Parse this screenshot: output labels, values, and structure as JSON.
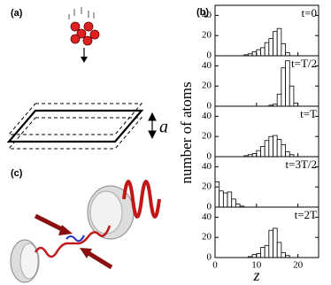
{
  "figure": {
    "panel_labels": [
      "(a)",
      "(b)",
      "(c)"
    ],
    "gap_label": "a",
    "xlabel": "z",
    "ylabel": "number of atoms"
  },
  "chart_data": [
    {
      "type": "histogram",
      "annotation": "t=0",
      "bins": [
        7,
        8,
        9,
        10,
        11,
        12,
        13,
        14,
        15,
        16,
        17,
        18
      ],
      "values": [
        1,
        2,
        4,
        6,
        8,
        13,
        17,
        24,
        27,
        12,
        3
      ],
      "xlim": [
        0,
        25
      ],
      "ylim": [
        0,
        50
      ],
      "yticks": [
        0,
        20,
        40
      ],
      "xticks": [
        0,
        10,
        20
      ],
      "color": "#ffffff"
    },
    {
      "type": "histogram",
      "annotation": "t=T/2",
      "bins": [
        13,
        14,
        15,
        16,
        17,
        18,
        19,
        20
      ],
      "values": [
        1,
        2,
        12,
        38,
        45,
        20,
        3
      ],
      "xlim": [
        0,
        25
      ],
      "ylim": [
        0,
        50
      ],
      "yticks": [
        0,
        20,
        40
      ],
      "xticks": [
        0,
        10,
        20
      ],
      "color": "#ffffff"
    },
    {
      "type": "histogram",
      "annotation": "t=T",
      "bins": [
        7,
        8,
        9,
        10,
        11,
        12,
        13,
        14,
        15,
        16,
        17,
        18,
        19
      ],
      "values": [
        1,
        2,
        3,
        6,
        10,
        16,
        20,
        21,
        17,
        12,
        5,
        2
      ],
      "xlim": [
        0,
        25
      ],
      "ylim": [
        0,
        50
      ],
      "yticks": [
        0,
        20,
        40
      ],
      "xticks": [
        0,
        10,
        20
      ],
      "color": "#ffffff"
    },
    {
      "type": "histogram",
      "annotation": "t=3T/2",
      "bins": [
        0,
        1,
        2,
        3,
        4,
        5,
        6,
        7
      ],
      "values": [
        25,
        16,
        14,
        15,
        8,
        3,
        1
      ],
      "xlim": [
        0,
        25
      ],
      "ylim": [
        0,
        50
      ],
      "yticks": [
        0,
        20,
        40
      ],
      "xticks": [
        0,
        10,
        20
      ],
      "color": "#ffffff"
    },
    {
      "type": "histogram",
      "annotation": "t=2T",
      "bins": [
        8,
        9,
        10,
        11,
        12,
        13,
        14,
        15,
        16,
        17,
        18
      ],
      "values": [
        1,
        3,
        4,
        10,
        12,
        27,
        29,
        15,
        5,
        2
      ],
      "xlim": [
        0,
        25
      ],
      "ylim": [
        0,
        50
      ],
      "yticks": [
        0,
        20,
        40
      ],
      "xticks": [
        0,
        10,
        20
      ],
      "color": "#ffffff"
    }
  ]
}
